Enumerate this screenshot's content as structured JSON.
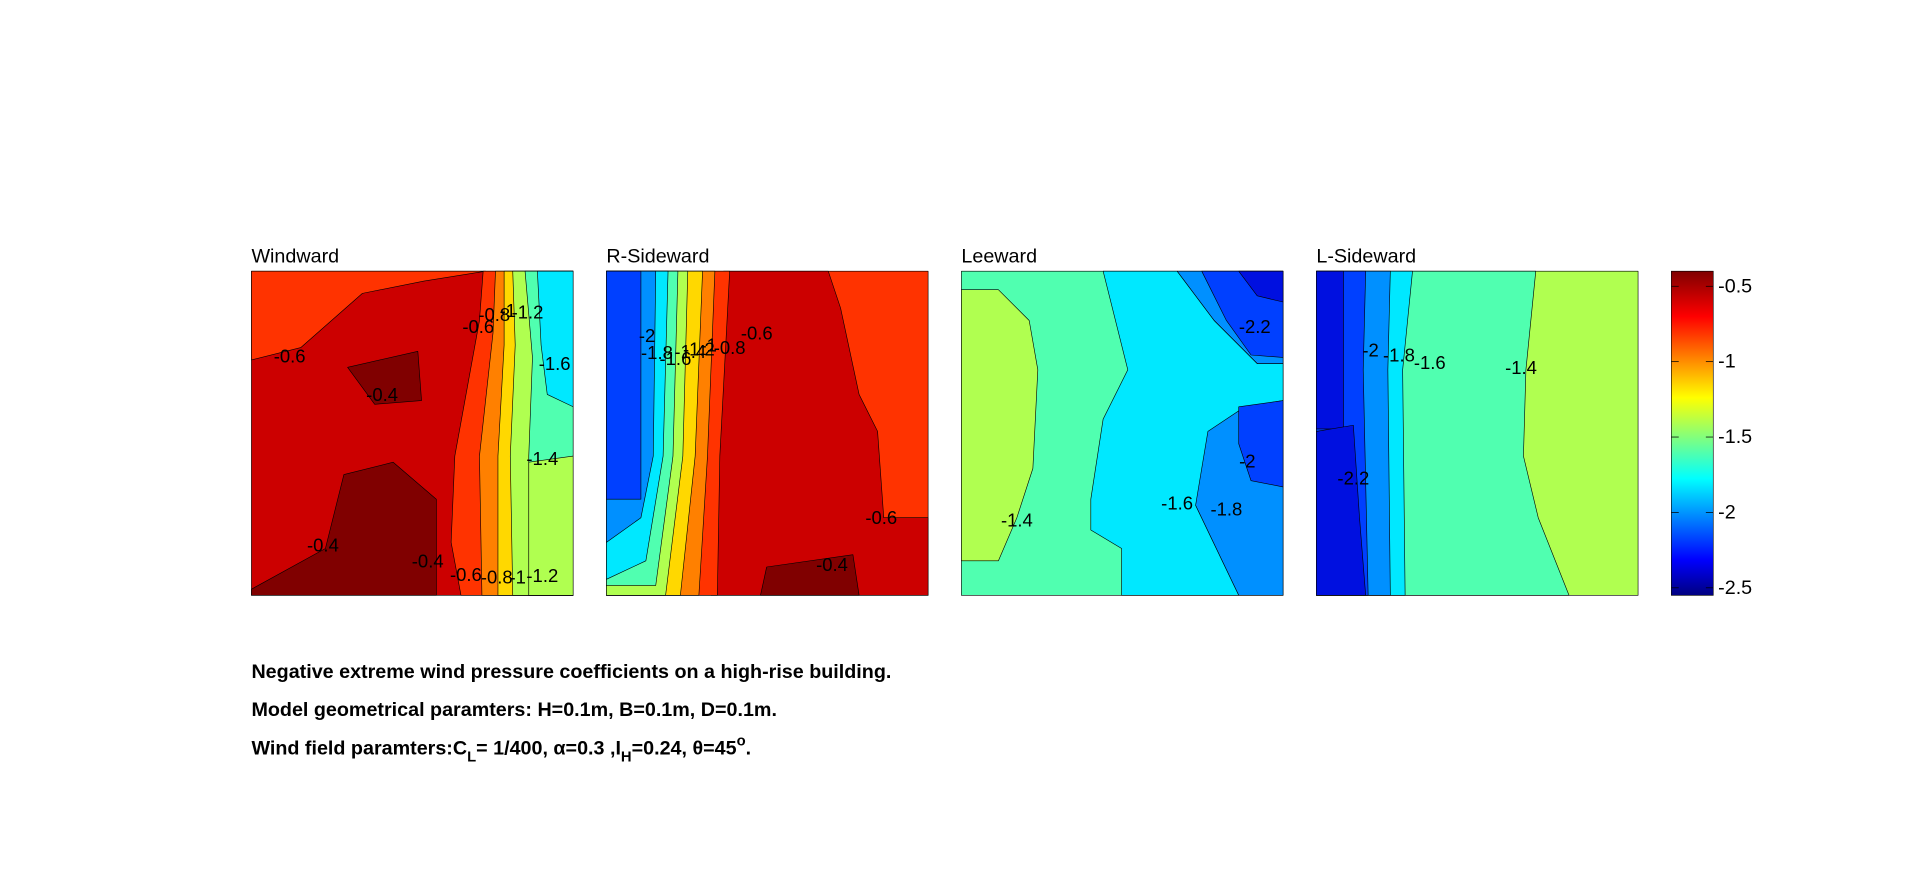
{
  "chart_data": [
    {
      "type": "contour",
      "title": "Windward",
      "contour_labels": [
        -0.6,
        -0.4,
        -0.6,
        -0.8,
        -1,
        -1.2,
        -1.6,
        -1.4,
        -0.4,
        -0.4,
        -0.6,
        -0.8,
        -1,
        -1.2
      ]
    },
    {
      "type": "contour",
      "title": "R-Sideward",
      "contour_labels": [
        -2,
        -1.8,
        -1.6,
        -1.4,
        -1.2,
        -1,
        -0.8,
        -0.6,
        -0.6,
        -0.4
      ]
    },
    {
      "type": "contour",
      "title": "Leeward",
      "contour_labels": [
        -2.2,
        -2,
        -1.8,
        -1.6,
        -1.4
      ]
    },
    {
      "type": "contour",
      "title": "L-Sideward",
      "contour_labels": [
        -2,
        -1.8,
        -1.6,
        -1.4,
        -2.2
      ]
    }
  ],
  "colorbar": {
    "ylim": [
      -2.55,
      -0.4
    ],
    "yticks": [
      -0.5,
      -1,
      -1.5,
      -2,
      -2.5
    ]
  },
  "caption": {
    "line1": "Negative extreme wind pressure coefficients on a high-rise building.",
    "line2": "Model geometrical paramters: H=0.1m, B=0.1m, D=0.1m.",
    "line3": [
      "Wind field paramters:C",
      "L",
      "= 1/400, α=0.3 ,I",
      "H",
      "=0.24, θ=45",
      "o",
      "."
    ]
  }
}
